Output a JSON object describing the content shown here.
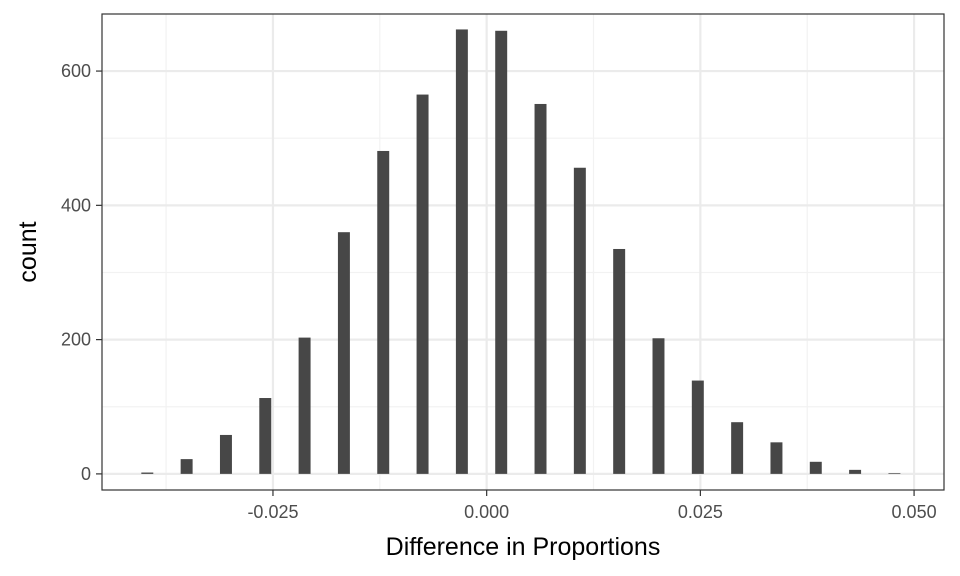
{
  "chart_data": {
    "type": "bar",
    "xlabel": "Difference in Proportions",
    "ylabel": "count",
    "xlim": [
      -0.045,
      0.0535
    ],
    "ylim": [
      -24,
      685
    ],
    "x_ticks": [
      -0.025,
      0.0,
      0.025,
      0.05
    ],
    "x_tick_labels": [
      "-0.025",
      "0.000",
      "0.025",
      "0.050"
    ],
    "y_ticks": [
      0,
      200,
      400,
      600
    ],
    "y_tick_labels": [
      "0",
      "200",
      "400",
      "600"
    ],
    "bar_width": 0.0014,
    "x": [
      -0.0397,
      -0.0351,
      -0.0305,
      -0.0259,
      -0.0213,
      -0.0167,
      -0.0121,
      -0.0075,
      -0.0029,
      0.0017,
      0.0063,
      0.0109,
      0.0155,
      0.0201,
      0.0247,
      0.0293,
      0.0339,
      0.0385,
      0.0431,
      0.0477
    ],
    "values": [
      2,
      22,
      58,
      113,
      203,
      360,
      481,
      565,
      662,
      660,
      551,
      456,
      335,
      202,
      139,
      77,
      47,
      18,
      6,
      1
    ],
    "grid": true,
    "theme": "bw",
    "bar_color": "#474747"
  }
}
